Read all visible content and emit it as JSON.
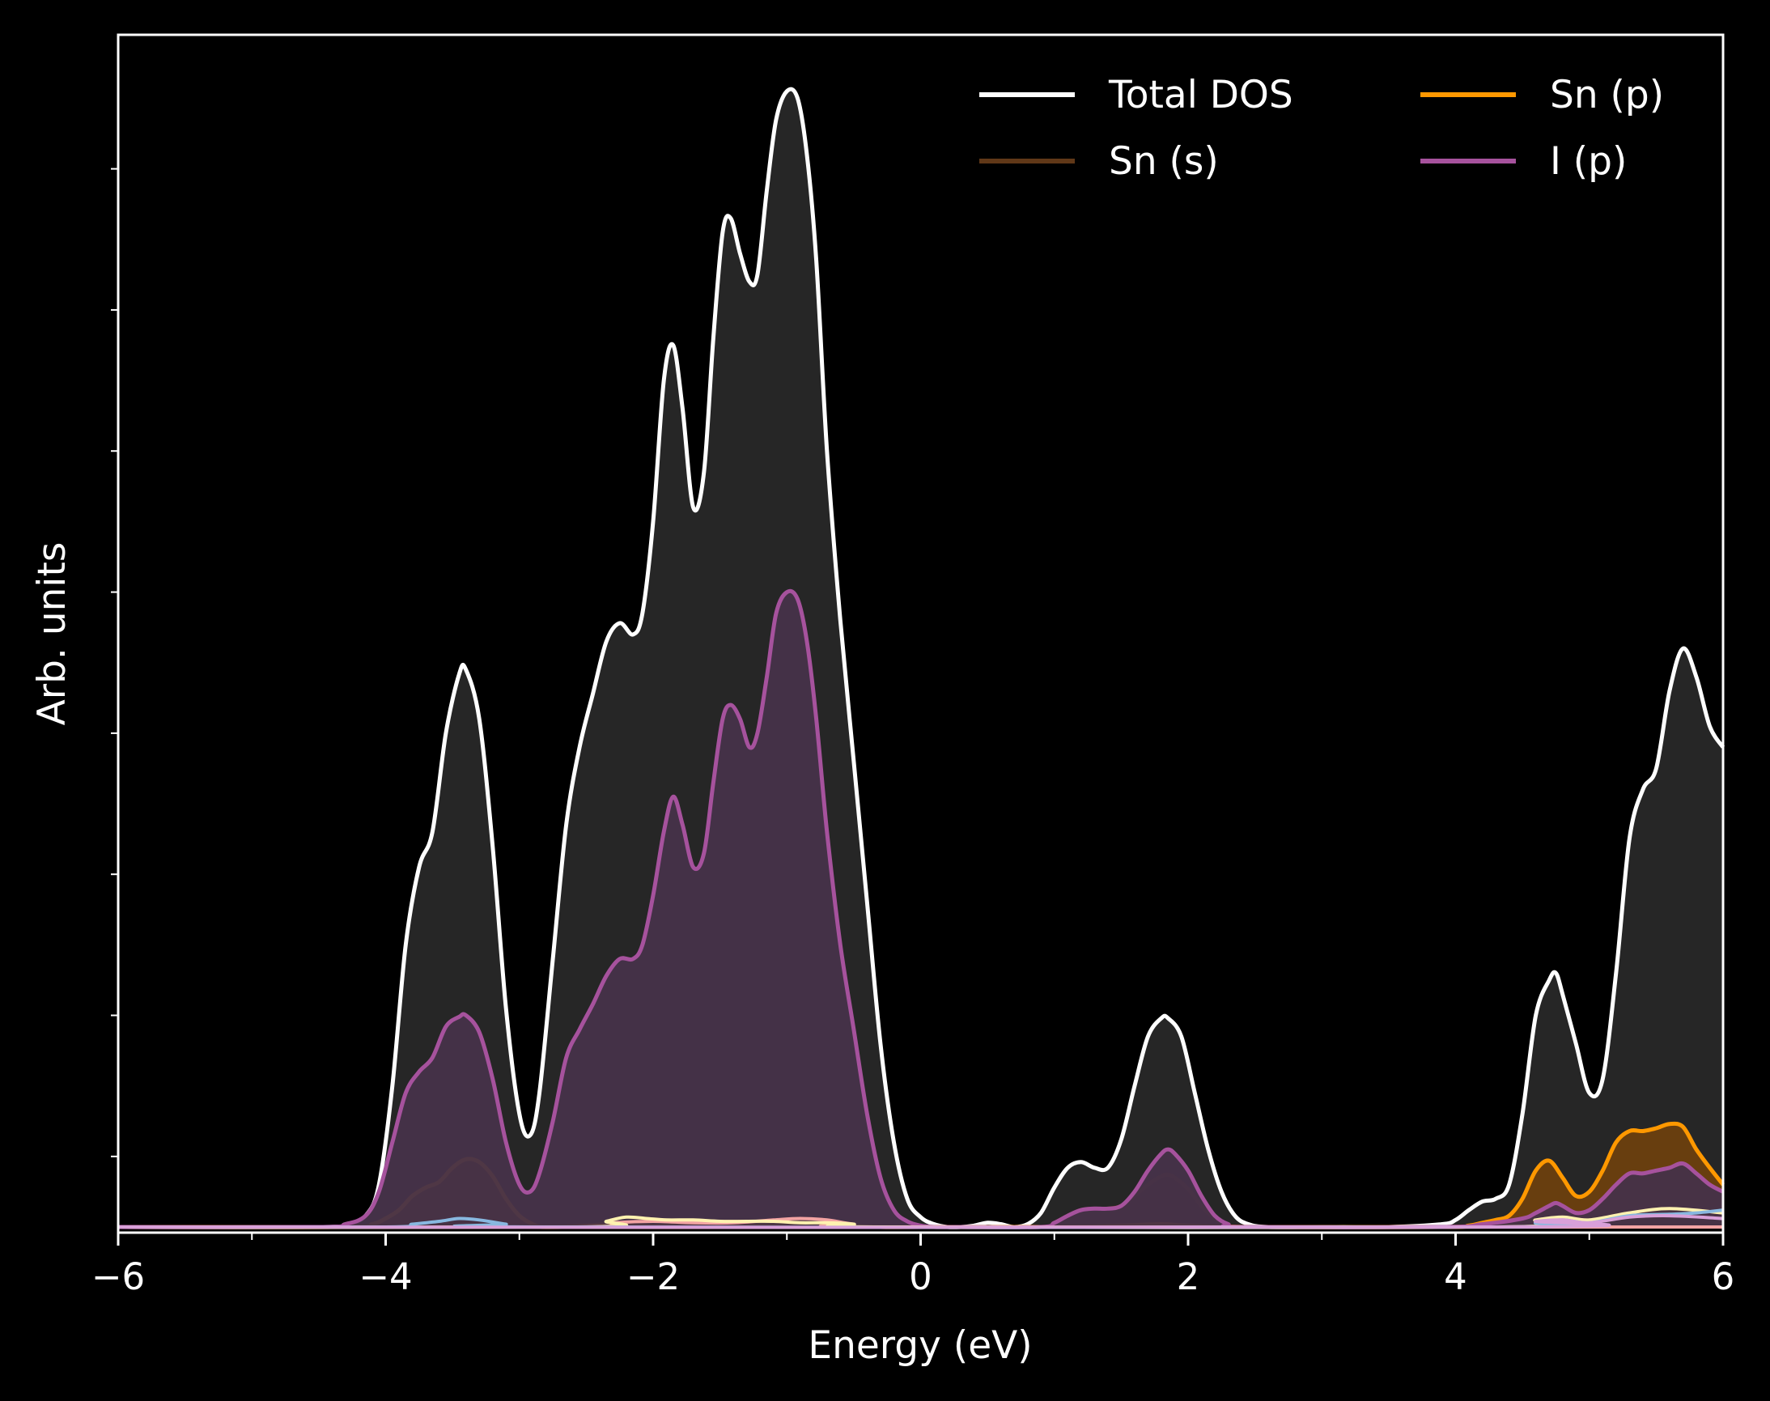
{
  "chart_data": {
    "type": "area",
    "title": "",
    "xlabel": "Energy (eV)",
    "ylabel": "Arb. units",
    "xlim": [
      -6,
      6
    ],
    "ylim": [
      0,
      8.45
    ],
    "x_ticks": [
      -6,
      -4,
      -2,
      0,
      2,
      4,
      6
    ],
    "x_tick_labels": [
      "−6",
      "−4",
      "−2",
      "0",
      "2",
      "4",
      "6"
    ],
    "x_minor_ticks": [
      -5,
      -3,
      -1,
      1,
      3,
      5
    ],
    "y_ticks": [
      0.5,
      1.5,
      2.5,
      3.5,
      4.5,
      5.5,
      6.5,
      7.5
    ],
    "y_tick_labels_visible": false,
    "grid": false,
    "legend": {
      "position": "top-right",
      "columns": 2
    },
    "background": "#000000",
    "series": [
      {
        "name": "Total DOS",
        "color": "#ffffff",
        "fill": "#282828",
        "x": [
          -6,
          -4.5,
          -4.3,
          -4.15,
          -4.05,
          -3.95,
          -3.85,
          -3.75,
          -3.65,
          -3.55,
          -3.45,
          -3.4,
          -3.3,
          -3.2,
          -3.1,
          -3.0,
          -2.92,
          -2.85,
          -2.75,
          -2.65,
          -2.55,
          -2.45,
          -2.35,
          -2.25,
          -2.15,
          -2.08,
          -2.0,
          -1.92,
          -1.85,
          -1.78,
          -1.7,
          -1.62,
          -1.55,
          -1.48,
          -1.42,
          -1.35,
          -1.28,
          -1.22,
          -1.15,
          -1.08,
          -1.0,
          -0.92,
          -0.85,
          -0.78,
          -0.7,
          -0.6,
          -0.5,
          -0.4,
          -0.3,
          -0.2,
          -0.1,
          0.0,
          0.1,
          0.2,
          0.3,
          0.4,
          0.5,
          0.6,
          0.7,
          0.8,
          0.9,
          1.0,
          1.1,
          1.2,
          1.3,
          1.4,
          1.5,
          1.6,
          1.7,
          1.8,
          1.85,
          1.95,
          2.05,
          2.15,
          2.25,
          2.35,
          2.45,
          2.6,
          3.0,
          3.5,
          3.9,
          4.0,
          4.1,
          4.2,
          4.3,
          4.4,
          4.5,
          4.6,
          4.7,
          4.75,
          4.8,
          4.9,
          5.0,
          5.1,
          5.2,
          5.3,
          5.4,
          5.5,
          5.6,
          5.7,
          5.8,
          5.9,
          6.0
        ],
        "y": [
          0.0,
          0.0,
          0.02,
          0.08,
          0.3,
          1.0,
          2.0,
          2.55,
          2.8,
          3.5,
          3.92,
          3.95,
          3.6,
          2.7,
          1.55,
          0.8,
          0.65,
          0.95,
          1.9,
          2.85,
          3.4,
          3.78,
          4.15,
          4.28,
          4.2,
          4.35,
          5.0,
          6.0,
          6.25,
          5.8,
          5.1,
          5.35,
          6.3,
          7.05,
          7.15,
          6.9,
          6.7,
          6.75,
          7.35,
          7.85,
          8.05,
          8.0,
          7.6,
          6.85,
          5.5,
          4.3,
          3.3,
          2.3,
          1.3,
          0.6,
          0.2,
          0.07,
          0.02,
          0.0,
          0.0,
          0.01,
          0.03,
          0.02,
          0.0,
          0.02,
          0.1,
          0.28,
          0.42,
          0.46,
          0.42,
          0.42,
          0.62,
          1.0,
          1.35,
          1.48,
          1.48,
          1.35,
          0.95,
          0.55,
          0.25,
          0.08,
          0.02,
          0.0,
          0.0,
          0.0,
          0.02,
          0.05,
          0.12,
          0.18,
          0.2,
          0.3,
          0.8,
          1.5,
          1.75,
          1.8,
          1.65,
          1.3,
          0.95,
          1.05,
          1.8,
          2.75,
          3.1,
          3.25,
          3.8,
          4.1,
          3.9,
          3.55,
          3.4
        ]
      },
      {
        "name": "Sn (s)",
        "color": "#603818",
        "fill": "#4a2e17",
        "x": [
          -6,
          -4.4,
          -4.0,
          -3.9,
          -3.8,
          -3.7,
          -3.6,
          -3.5,
          -3.4,
          -3.3,
          -3.2,
          -3.1,
          -3.0,
          -2.9,
          -2.8,
          -0.8,
          -0.5,
          0.0,
          0.9,
          1.0,
          1.2,
          1.4,
          1.5,
          1.6,
          1.7,
          1.8,
          1.85,
          1.9,
          2.0,
          2.1,
          2.2,
          2.3,
          2.4,
          3.9,
          4.2,
          4.5,
          4.7,
          4.75,
          4.8,
          5.0,
          5.2,
          5.4,
          5.6,
          5.7,
          5.8,
          6.0
        ],
        "y": [
          0,
          0,
          0.03,
          0.1,
          0.2,
          0.25,
          0.3,
          0.38,
          0.4,
          0.35,
          0.25,
          0.15,
          0.06,
          0.02,
          0,
          0,
          0,
          0,
          0,
          0.03,
          0.12,
          0.13,
          0.15,
          0.22,
          0.3,
          0.36,
          0.37,
          0.35,
          0.27,
          0.15,
          0.06,
          0.02,
          0,
          0,
          0.02,
          0.04,
          0.08,
          0.09,
          0.08,
          0.05,
          0.06,
          0.09,
          0.1,
          0.11,
          0.1,
          0.08
        ]
      },
      {
        "name": "Sn (p)",
        "color": "#ff9800",
        "fill": "#6b3f0e",
        "x": [
          -6,
          -4.3,
          -4.1,
          -4.0,
          -3.9,
          -3.8,
          -3.7,
          -3.6,
          -3.5,
          -3.4,
          -3.3,
          -3.2,
          -3.1,
          -3.0,
          -2.9,
          -2.8,
          -2.5,
          -2.3,
          -2.0,
          -1.5,
          -1.0,
          -0.9,
          -0.8,
          -0.6,
          -0.3,
          0.0,
          1.0,
          1.5,
          1.8,
          2.0,
          2.5,
          3.9,
          4.1,
          4.2,
          4.3,
          4.4,
          4.5,
          4.6,
          4.7,
          4.8,
          4.9,
          5.0,
          5.1,
          5.2,
          5.3,
          5.4,
          5.5,
          5.6,
          5.7,
          5.8,
          5.9,
          6.0
        ],
        "y": [
          0,
          0,
          0.02,
          0.06,
          0.12,
          0.22,
          0.28,
          0.32,
          0.42,
          0.48,
          0.46,
          0.36,
          0.2,
          0.08,
          0.02,
          0,
          0.01,
          0.02,
          0.01,
          0.02,
          0.03,
          0.04,
          0.03,
          0.01,
          0,
          0,
          0,
          0.01,
          0.02,
          0.01,
          0,
          0,
          0.01,
          0.03,
          0.05,
          0.08,
          0.2,
          0.4,
          0.47,
          0.35,
          0.22,
          0.25,
          0.4,
          0.6,
          0.68,
          0.68,
          0.7,
          0.73,
          0.71,
          0.55,
          0.42,
          0.3
        ]
      },
      {
        "name": "I (p)",
        "color": "#a6529d",
        "fill": "#463249",
        "x": [
          -6,
          -4.5,
          -4.3,
          -4.15,
          -4.05,
          -3.95,
          -3.85,
          -3.75,
          -3.65,
          -3.55,
          -3.45,
          -3.4,
          -3.3,
          -3.2,
          -3.1,
          -3.0,
          -2.92,
          -2.85,
          -2.75,
          -2.65,
          -2.55,
          -2.45,
          -2.35,
          -2.25,
          -2.15,
          -2.08,
          -2.0,
          -1.92,
          -1.85,
          -1.78,
          -1.7,
          -1.62,
          -1.55,
          -1.48,
          -1.42,
          -1.35,
          -1.28,
          -1.22,
          -1.15,
          -1.08,
          -1.0,
          -0.92,
          -0.85,
          -0.78,
          -0.7,
          -0.6,
          -0.5,
          -0.4,
          -0.3,
          -0.2,
          -0.1,
          0.0,
          0.1,
          0.3,
          0.9,
          1.0,
          1.1,
          1.2,
          1.3,
          1.4,
          1.5,
          1.6,
          1.7,
          1.8,
          1.85,
          1.9,
          2.0,
          2.1,
          2.2,
          2.3,
          2.4,
          3.9,
          4.2,
          4.5,
          4.6,
          4.7,
          4.75,
          4.8,
          4.9,
          5.0,
          5.1,
          5.2,
          5.3,
          5.4,
          5.5,
          5.6,
          5.7,
          5.8,
          5.9,
          6.0
        ],
        "y": [
          0,
          0,
          0.02,
          0.08,
          0.25,
          0.6,
          0.95,
          1.1,
          1.2,
          1.42,
          1.49,
          1.5,
          1.38,
          1.05,
          0.6,
          0.3,
          0.25,
          0.38,
          0.75,
          1.2,
          1.4,
          1.58,
          1.78,
          1.9,
          1.9,
          2.0,
          2.35,
          2.8,
          3.05,
          2.85,
          2.55,
          2.65,
          3.15,
          3.6,
          3.7,
          3.6,
          3.4,
          3.5,
          3.9,
          4.35,
          4.5,
          4.45,
          4.15,
          3.6,
          2.8,
          2.0,
          1.4,
          0.8,
          0.35,
          0.12,
          0.04,
          0.01,
          0,
          0,
          0,
          0.03,
          0.08,
          0.12,
          0.13,
          0.13,
          0.15,
          0.25,
          0.4,
          0.52,
          0.55,
          0.52,
          0.4,
          0.22,
          0.08,
          0.02,
          0,
          0,
          0.02,
          0.06,
          0.1,
          0.15,
          0.17,
          0.15,
          0.1,
          0.12,
          0.2,
          0.3,
          0.38,
          0.38,
          0.4,
          0.42,
          0.45,
          0.38,
          0.3,
          0.25
        ]
      },
      {
        "name": "",
        "color": "#f3a3a3",
        "fill": "none",
        "x": [
          -6,
          -2.6,
          -2.3,
          -2.0,
          -1.7,
          -1.4,
          -1.1,
          -0.9,
          -0.7,
          -0.5,
          -0.2,
          6.0
        ],
        "y": [
          0,
          0,
          0.03,
          0.04,
          0.03,
          0.03,
          0.05,
          0.06,
          0.05,
          0.02,
          0,
          0
        ]
      },
      {
        "name": "",
        "color": "#fff2b0",
        "fill": "none",
        "x": [
          -6,
          -2.5,
          -2.35,
          -2.2,
          -2.05,
          -1.9,
          -1.7,
          -1.5,
          -1.3,
          -1.1,
          -0.9,
          -0.7,
          -0.5,
          -0.3,
          4.3,
          4.6,
          4.8,
          5.0,
          5.3,
          5.6,
          6.0
        ],
        "y": [
          0,
          0,
          0.04,
          0.07,
          0.06,
          0.05,
          0.05,
          0.04,
          0.04,
          0.04,
          0.03,
          0.03,
          0.02,
          0,
          0,
          0.05,
          0.07,
          0.05,
          0.1,
          0.13,
          0.1
        ]
      },
      {
        "name": "",
        "color": "#88b8e0",
        "fill": "none",
        "x": [
          -6,
          -4.0,
          -3.8,
          -3.6,
          -3.45,
          -3.3,
          -3.1,
          -2.9,
          4.3,
          4.6,
          4.8,
          5.0,
          5.3,
          5.6,
          5.8,
          6.0
        ],
        "y": [
          0,
          0,
          0.02,
          0.04,
          0.06,
          0.05,
          0.02,
          0,
          0,
          0.03,
          0.05,
          0.03,
          0.08,
          0.09,
          0.1,
          0.12
        ]
      },
      {
        "name": "",
        "color": "#d9a0d9",
        "fill": "none",
        "x": [
          -6,
          4.3,
          4.6,
          4.8,
          5.0,
          5.3,
          5.6,
          6.0
        ],
        "y": [
          0,
          0,
          0.04,
          0.05,
          0.03,
          0.07,
          0.08,
          0.06
        ]
      }
    ]
  }
}
